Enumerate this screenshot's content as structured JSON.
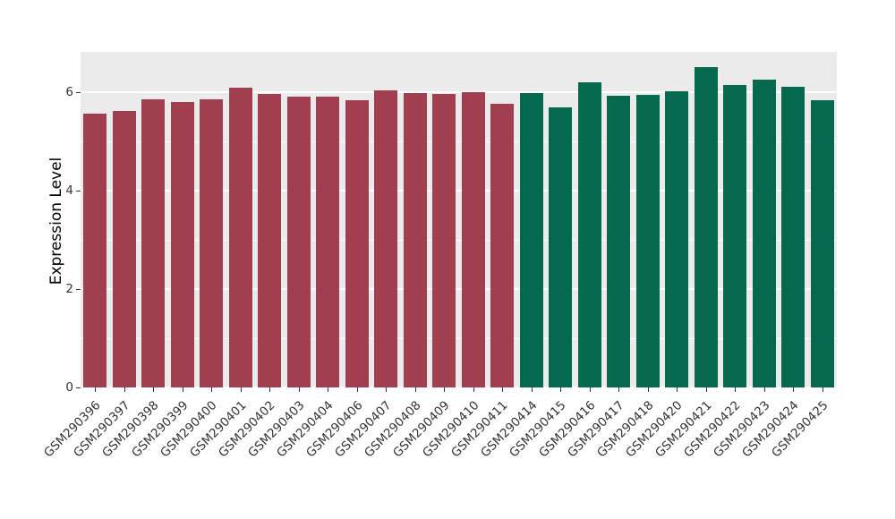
{
  "chart_data": {
    "type": "bar",
    "title": "",
    "xlabel": "",
    "ylabel": "Expression Level",
    "ylim": [
      0,
      6.82
    ],
    "yticks_major": [
      0,
      2,
      4,
      6
    ],
    "yticks_minor": [
      1,
      3,
      5
    ],
    "grid": "on",
    "legend": "none",
    "panel_background": "#EBEBEB",
    "gridline_color": "#FFFFFF",
    "categories": [
      "GSM290396",
      "GSM290397",
      "GSM290398",
      "GSM290399",
      "GSM290400",
      "GSM290401",
      "GSM290402",
      "GSM290403",
      "GSM290404",
      "GSM290406",
      "GSM290407",
      "GSM290408",
      "GSM290409",
      "GSM290410",
      "GSM290411",
      "GSM290414",
      "GSM290415",
      "GSM290416",
      "GSM290417",
      "GSM290418",
      "GSM290420",
      "GSM290421",
      "GSM290422",
      "GSM290423",
      "GSM290424",
      "GSM290425"
    ],
    "values": [
      5.56,
      5.62,
      5.85,
      5.8,
      5.85,
      6.09,
      5.96,
      5.91,
      5.91,
      5.84,
      6.04,
      5.98,
      5.96,
      6.0,
      5.76,
      5.98,
      5.69,
      6.2,
      5.93,
      5.95,
      6.02,
      6.51,
      6.15,
      6.25,
      6.11,
      5.84
    ],
    "groups": [
      "group1",
      "group1",
      "group1",
      "group1",
      "group1",
      "group1",
      "group1",
      "group1",
      "group1",
      "group1",
      "group1",
      "group1",
      "group1",
      "group1",
      "group1",
      "group2",
      "group2",
      "group2",
      "group2",
      "group2",
      "group2",
      "group2",
      "group2",
      "group2",
      "group2",
      "group2"
    ],
    "group_colors": {
      "group1": "#A13E4F",
      "group2": "#04694E"
    }
  }
}
